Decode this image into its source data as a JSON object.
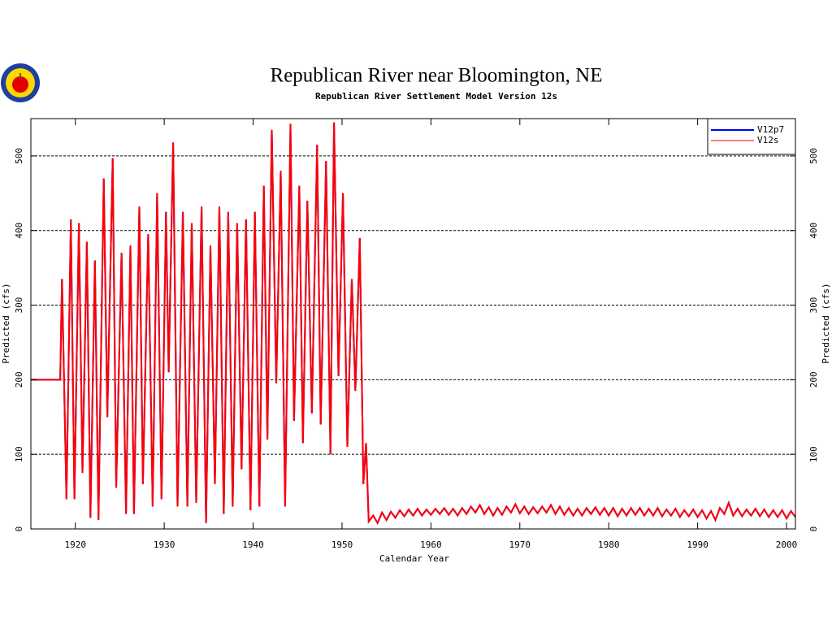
{
  "chart_data": {
    "type": "line",
    "title": "Republican River near Bloomington, NE",
    "subtitle": "Republican River Settlement Model Version 12s",
    "xlabel": "Calendar Year",
    "ylabel": "Predicted (cfs)",
    "y2label": "Predicted (cfs)",
    "legend": "upper right",
    "grid": true,
    "xlim": [
      1915,
      2001
    ],
    "ylim": [
      0,
      550
    ],
    "y2lim": [
      0,
      550
    ],
    "xticks": [
      1920,
      1930,
      1940,
      1950,
      1960,
      1970,
      1980,
      1990,
      2000
    ],
    "yticks": [
      0,
      100,
      200,
      300,
      400,
      500
    ],
    "y2ticks": [
      0,
      100,
      200,
      300,
      400,
      500
    ],
    "x": [
      1915,
      1918.3,
      1918.5,
      1919,
      1919.5,
      1919.9,
      1920.4,
      1920.8,
      1921.3,
      1921.7,
      1922.2,
      1922.6,
      1923.2,
      1923.6,
      1924.2,
      1924.6,
      1925.2,
      1925.7,
      1926.2,
      1926.6,
      1927.2,
      1927.6,
      1928.2,
      1928.7,
      1929.2,
      1929.7,
      1930.2,
      1930.5,
      1931,
      1931.5,
      1932.1,
      1932.6,
      1933.1,
      1933.6,
      1934.2,
      1934.7,
      1935.2,
      1935.7,
      1936.2,
      1936.7,
      1937.2,
      1937.7,
      1938.2,
      1938.7,
      1939.2,
      1939.7,
      1940.2,
      1940.7,
      1941.2,
      1941.6,
      1942.1,
      1942.6,
      1943.1,
      1943.6,
      1944.2,
      1944.6,
      1945.2,
      1945.6,
      1946.1,
      1946.6,
      1947.2,
      1947.6,
      1948.2,
      1948.7,
      1949.1,
      1949.6,
      1950.1,
      1950.6,
      1951.1,
      1951.5,
      1952,
      1952.4,
      1952.7,
      1953,
      1953.5,
      1954,
      1954.5,
      1955,
      1955.5,
      1956,
      1956.5,
      1957,
      1957.5,
      1958,
      1958.5,
      1959,
      1959.5,
      1960,
      1960.5,
      1961,
      1961.5,
      1962,
      1962.5,
      1963,
      1963.5,
      1964,
      1964.5,
      1965,
      1965.5,
      1966,
      1966.5,
      1967,
      1967.5,
      1968,
      1968.5,
      1969,
      1969.5,
      1970,
      1970.5,
      1971,
      1971.5,
      1972,
      1972.5,
      1973,
      1973.5,
      1974,
      1974.5,
      1975,
      1975.5,
      1976,
      1976.5,
      1977,
      1977.5,
      1978,
      1978.5,
      1979,
      1979.5,
      1980,
      1980.5,
      1981,
      1981.5,
      1982,
      1982.5,
      1983,
      1983.5,
      1984,
      1984.5,
      1985,
      1985.5,
      1986,
      1986.5,
      1987,
      1987.5,
      1988,
      1988.5,
      1989,
      1989.5,
      1990,
      1990.5,
      1991,
      1991.5,
      1992,
      1992.5,
      1993,
      1993.5,
      1994,
      1994.5,
      1995,
      1995.5,
      1996,
      1996.5,
      1997,
      1997.5,
      1998,
      1998.5,
      1999,
      1999.5,
      2000,
      2000.5,
      2001
    ],
    "series": [
      {
        "name": "V12p7",
        "color": "#0000ff",
        "values": [
          200,
          200,
          335,
          40,
          415,
          40,
          410,
          75,
          385,
          15,
          360,
          12,
          470,
          150,
          497,
          55,
          370,
          20,
          380,
          20,
          432,
          60,
          395,
          30,
          450,
          40,
          425,
          210,
          518,
          30,
          425,
          30,
          410,
          35,
          432,
          8,
          380,
          60,
          432,
          20,
          425,
          30,
          410,
          80,
          415,
          25,
          425,
          30,
          460,
          120,
          535,
          195,
          480,
          30,
          543,
          145,
          460,
          115,
          440,
          155,
          515,
          140,
          493,
          100,
          545,
          205,
          450,
          110,
          335,
          185,
          390,
          60,
          115,
          10,
          18,
          8,
          22,
          12,
          23,
          15,
          25,
          17,
          26,
          18,
          27,
          18,
          26,
          19,
          27,
          20,
          28,
          19,
          27,
          18,
          28,
          20,
          30,
          22,
          32,
          20,
          29,
          18,
          28,
          19,
          30,
          22,
          33,
          21,
          30,
          20,
          29,
          21,
          30,
          22,
          32,
          20,
          30,
          19,
          28,
          18,
          27,
          18,
          28,
          20,
          29,
          19,
          28,
          18,
          28,
          17,
          27,
          18,
          28,
          19,
          28,
          18,
          27,
          18,
          28,
          17,
          26,
          18,
          27,
          16,
          25,
          17,
          26,
          16,
          25,
          14,
          24,
          12,
          28,
          20,
          35,
          18,
          27,
          17,
          26,
          18,
          27,
          17,
          26,
          16,
          25,
          16,
          25,
          14,
          24,
          16
        ]
      },
      {
        "name": "V12s",
        "color": "#ff0000",
        "values": [
          200,
          200,
          335,
          40,
          415,
          40,
          410,
          75,
          385,
          15,
          360,
          12,
          470,
          150,
          497,
          55,
          370,
          20,
          380,
          20,
          432,
          60,
          395,
          30,
          450,
          40,
          425,
          210,
          518,
          30,
          425,
          30,
          410,
          35,
          432,
          8,
          380,
          60,
          432,
          20,
          425,
          30,
          410,
          80,
          415,
          25,
          425,
          30,
          460,
          120,
          535,
          195,
          480,
          30,
          543,
          145,
          460,
          115,
          440,
          155,
          515,
          140,
          493,
          100,
          545,
          205,
          450,
          110,
          335,
          185,
          390,
          60,
          115,
          10,
          18,
          8,
          22,
          12,
          23,
          15,
          25,
          17,
          26,
          18,
          27,
          18,
          26,
          19,
          27,
          20,
          28,
          19,
          27,
          18,
          28,
          20,
          30,
          22,
          32,
          20,
          29,
          18,
          28,
          19,
          30,
          22,
          33,
          21,
          30,
          20,
          29,
          21,
          30,
          22,
          32,
          20,
          30,
          19,
          28,
          18,
          27,
          18,
          28,
          20,
          29,
          19,
          28,
          18,
          28,
          17,
          27,
          18,
          28,
          19,
          28,
          18,
          27,
          18,
          28,
          17,
          26,
          18,
          27,
          16,
          25,
          17,
          26,
          16,
          25,
          14,
          24,
          12,
          28,
          20,
          35,
          18,
          27,
          17,
          26,
          18,
          27,
          17,
          26,
          16,
          25,
          16,
          25,
          14,
          24,
          16
        ]
      }
    ]
  }
}
